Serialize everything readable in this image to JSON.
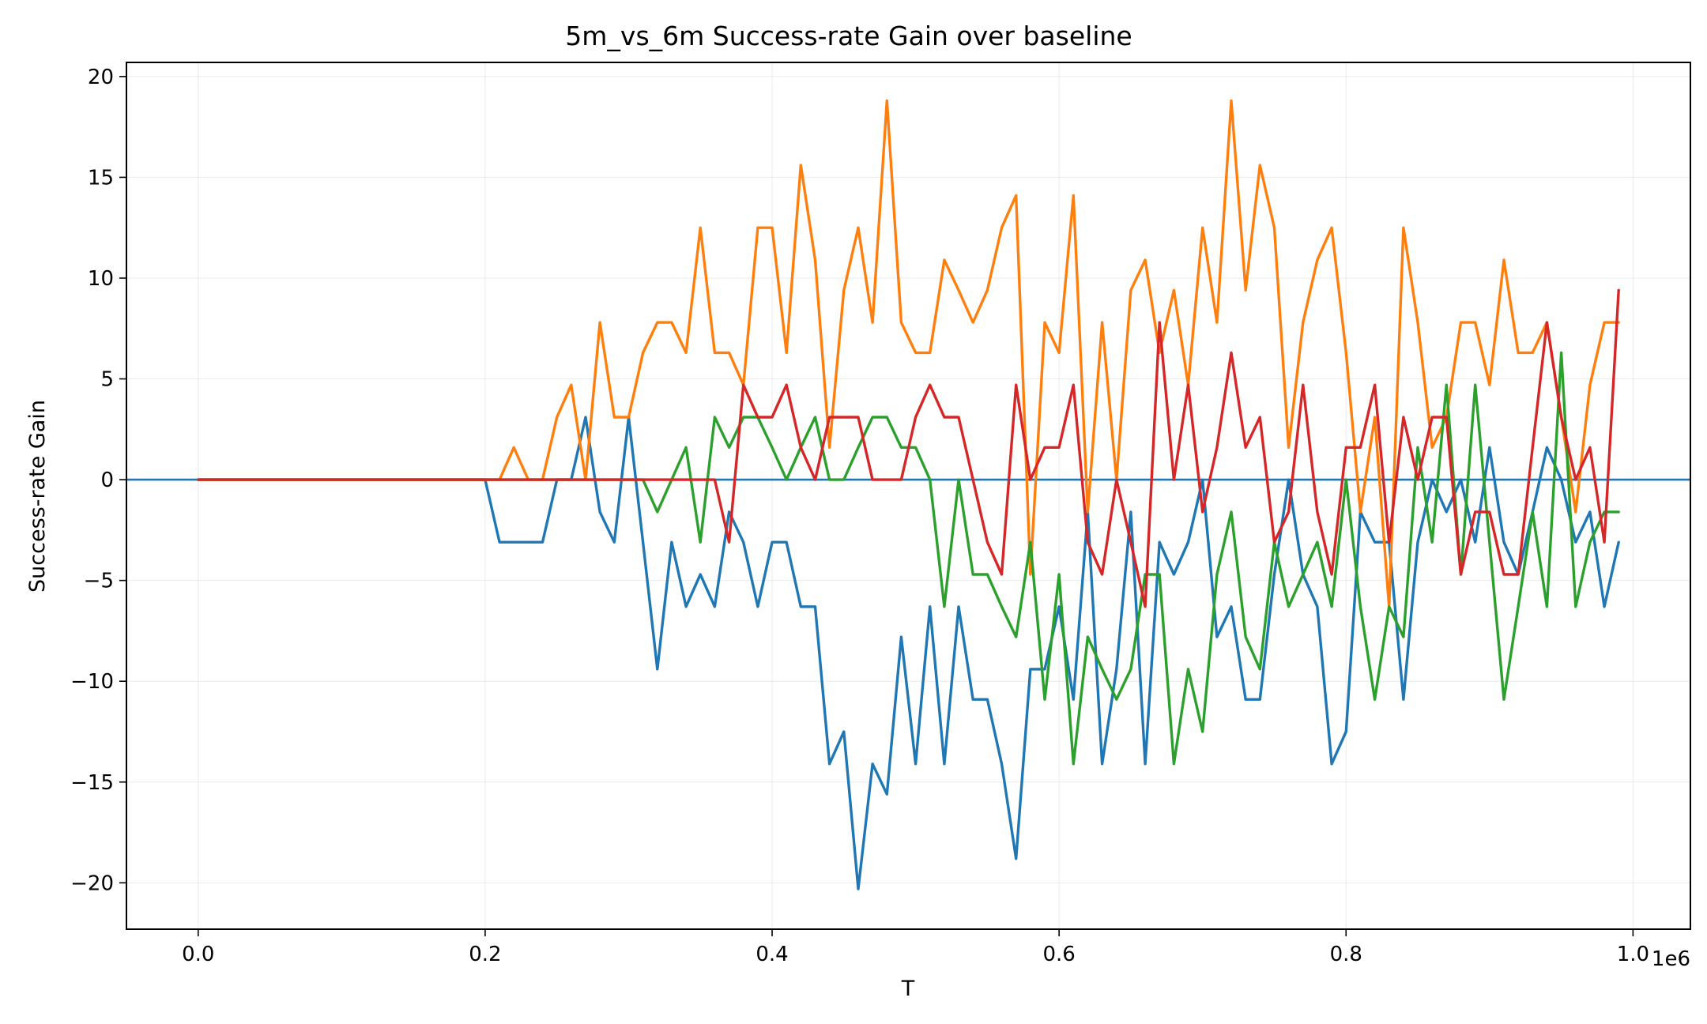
{
  "chart_data": {
    "type": "line",
    "title": "5m_vs_6m Success-rate Gain over baseline",
    "xlabel": "T",
    "ylabel": "Success-rate Gain",
    "x_offset_label": "1e6",
    "xlim": [
      -0.05,
      1.04
    ],
    "ylim": [
      -22.3,
      20.7
    ],
    "xticks": [
      0.0,
      0.2,
      0.4,
      0.6,
      0.8,
      1.0
    ],
    "xtick_labels": [
      "0.0",
      "0.2",
      "0.4",
      "0.6",
      "0.8",
      "1.0"
    ],
    "yticks": [
      -20,
      -15,
      -10,
      -5,
      0,
      5,
      10,
      15,
      20
    ],
    "ytick_labels": [
      "−20",
      "−15",
      "−10",
      "−5",
      "0",
      "5",
      "10",
      "15",
      "20"
    ],
    "grid": true,
    "legend": "none",
    "x": [
      0.0,
      0.01,
      0.02,
      0.03,
      0.04,
      0.05,
      0.06,
      0.07,
      0.08,
      0.09,
      0.1,
      0.11,
      0.12,
      0.13,
      0.14,
      0.15,
      0.16,
      0.17,
      0.18,
      0.19,
      0.2,
      0.21,
      0.22,
      0.23,
      0.24,
      0.25,
      0.26,
      0.27,
      0.28,
      0.29,
      0.3,
      0.31,
      0.32,
      0.33,
      0.34,
      0.35,
      0.36,
      0.37,
      0.38,
      0.39,
      0.4,
      0.41,
      0.42,
      0.43,
      0.44,
      0.45,
      0.46,
      0.47,
      0.48,
      0.49,
      0.5,
      0.51,
      0.52,
      0.53,
      0.54,
      0.55,
      0.56,
      0.57,
      0.58,
      0.59,
      0.6,
      0.61,
      0.62,
      0.63,
      0.64,
      0.65,
      0.66,
      0.67,
      0.68,
      0.69,
      0.7,
      0.71,
      0.72,
      0.73,
      0.74,
      0.75,
      0.76,
      0.77,
      0.78,
      0.79,
      0.8,
      0.81,
      0.82,
      0.83,
      0.84,
      0.85,
      0.86,
      0.87,
      0.88,
      0.89,
      0.9,
      0.91,
      0.92,
      0.93,
      0.94,
      0.95,
      0.96,
      0.97,
      0.98,
      0.99
    ],
    "series": [
      {
        "color": "#1f77b4",
        "values": [
          0,
          0,
          0,
          0,
          0,
          0,
          0,
          0,
          0,
          0,
          0,
          0,
          0,
          0,
          0,
          0,
          0,
          0,
          0,
          0,
          0,
          -3.1,
          -3.1,
          -3.1,
          -3.1,
          0,
          0,
          3.1,
          -1.6,
          -3.1,
          3.1,
          -3.1,
          -9.4,
          -3.1,
          -6.3,
          -4.7,
          -6.3,
          -1.6,
          -3.1,
          -6.3,
          -3.1,
          -3.1,
          -6.3,
          -6.3,
          -14.1,
          -12.5,
          -20.3,
          -14.1,
          -15.6,
          -7.8,
          -14.1,
          -6.3,
          -14.1,
          -6.3,
          -10.9,
          -10.9,
          -14.1,
          -18.8,
          -9.4,
          -9.4,
          -6.3,
          -10.9,
          -1.6,
          -14.1,
          -9.4,
          -1.6,
          -14.1,
          -3.1,
          -4.7,
          -3.1,
          0,
          -7.8,
          -6.3,
          -10.9,
          -10.9,
          -4.7,
          0,
          -4.7,
          -6.3,
          -14.1,
          -12.5,
          -1.6,
          -3.1,
          -3.1,
          -10.9,
          -3.1,
          0,
          -1.6,
          0,
          -3.1,
          1.6,
          -3.1,
          -4.7,
          -1.6,
          1.6,
          0,
          -3.1,
          -1.6,
          -6.3,
          -3.1
        ]
      },
      {
        "color": "#ff7f0e",
        "values": [
          0,
          0,
          0,
          0,
          0,
          0,
          0,
          0,
          0,
          0,
          0,
          0,
          0,
          0,
          0,
          0,
          0,
          0,
          0,
          0,
          0,
          0,
          1.6,
          0,
          0,
          3.1,
          4.7,
          0,
          7.8,
          3.1,
          3.1,
          6.3,
          7.8,
          7.8,
          6.3,
          12.5,
          6.3,
          6.3,
          4.7,
          12.5,
          12.5,
          6.3,
          15.6,
          10.9,
          1.6,
          9.4,
          12.5,
          7.8,
          18.8,
          7.8,
          6.3,
          6.3,
          10.9,
          9.4,
          7.8,
          9.4,
          12.5,
          14.1,
          -4.7,
          7.8,
          6.3,
          14.1,
          -1.6,
          7.8,
          0,
          9.4,
          10.9,
          6.3,
          9.4,
          4.7,
          12.5,
          7.8,
          18.8,
          9.4,
          15.6,
          12.5,
          1.6,
          7.8,
          10.9,
          12.5,
          6.3,
          -1.6,
          3.1,
          -6.3,
          12.5,
          7.8,
          1.6,
          3.1,
          7.8,
          7.8,
          4.7,
          10.9,
          6.3,
          6.3,
          7.8,
          3.1,
          -1.6,
          4.7,
          7.8,
          7.8
        ]
      },
      {
        "color": "#2ca02c",
        "values": [
          0,
          0,
          0,
          0,
          0,
          0,
          0,
          0,
          0,
          0,
          0,
          0,
          0,
          0,
          0,
          0,
          0,
          0,
          0,
          0,
          0,
          0,
          0,
          0,
          0,
          0,
          0,
          0,
          0,
          0,
          0,
          0,
          -1.6,
          0,
          1.6,
          -3.1,
          3.1,
          1.6,
          3.1,
          3.1,
          1.6,
          0,
          1.6,
          3.1,
          0,
          0,
          1.6,
          3.1,
          3.1,
          1.6,
          1.6,
          0,
          -6.3,
          0,
          -4.7,
          -4.7,
          -6.3,
          -7.8,
          -3.1,
          -10.9,
          -4.7,
          -14.1,
          -7.8,
          -9.4,
          -10.9,
          -9.4,
          -4.7,
          -4.7,
          -14.1,
          -9.4,
          -12.5,
          -4.7,
          -1.6,
          -7.8,
          -9.4,
          -3.1,
          -6.3,
          -4.7,
          -3.1,
          -6.3,
          0,
          -6.3,
          -10.9,
          -6.3,
          -7.8,
          1.6,
          -3.1,
          4.7,
          -4.7,
          4.7,
          -3.1,
          -10.9,
          -6.3,
          -1.6,
          -6.3,
          6.3,
          -6.3,
          -3.1,
          -1.6,
          -1.6
        ]
      },
      {
        "color": "#d62728",
        "values": [
          0,
          0,
          0,
          0,
          0,
          0,
          0,
          0,
          0,
          0,
          0,
          0,
          0,
          0,
          0,
          0,
          0,
          0,
          0,
          0,
          0,
          0,
          0,
          0,
          0,
          0,
          0,
          0,
          0,
          0,
          0,
          0,
          0,
          0,
          0,
          0,
          0,
          -3.1,
          4.7,
          3.1,
          3.1,
          4.7,
          1.6,
          0,
          3.1,
          3.1,
          3.1,
          0,
          0,
          0,
          3.1,
          4.7,
          3.1,
          3.1,
          0,
          -3.1,
          -4.7,
          4.7,
          0,
          1.6,
          1.6,
          4.7,
          -3.1,
          -4.7,
          0,
          -3.1,
          -6.3,
          7.8,
          0,
          4.7,
          -1.6,
          1.6,
          6.3,
          1.6,
          3.1,
          -3.1,
          -1.6,
          4.7,
          -1.6,
          -4.7,
          1.6,
          1.6,
          4.7,
          -3.1,
          3.1,
          0,
          3.1,
          3.1,
          -4.7,
          -1.6,
          -1.6,
          -4.7,
          -4.7,
          1.6,
          7.8,
          3.1,
          0,
          1.6,
          -3.1,
          9.4
        ]
      }
    ],
    "reference_line": {
      "y": 0,
      "color": "#1f77b4"
    }
  }
}
